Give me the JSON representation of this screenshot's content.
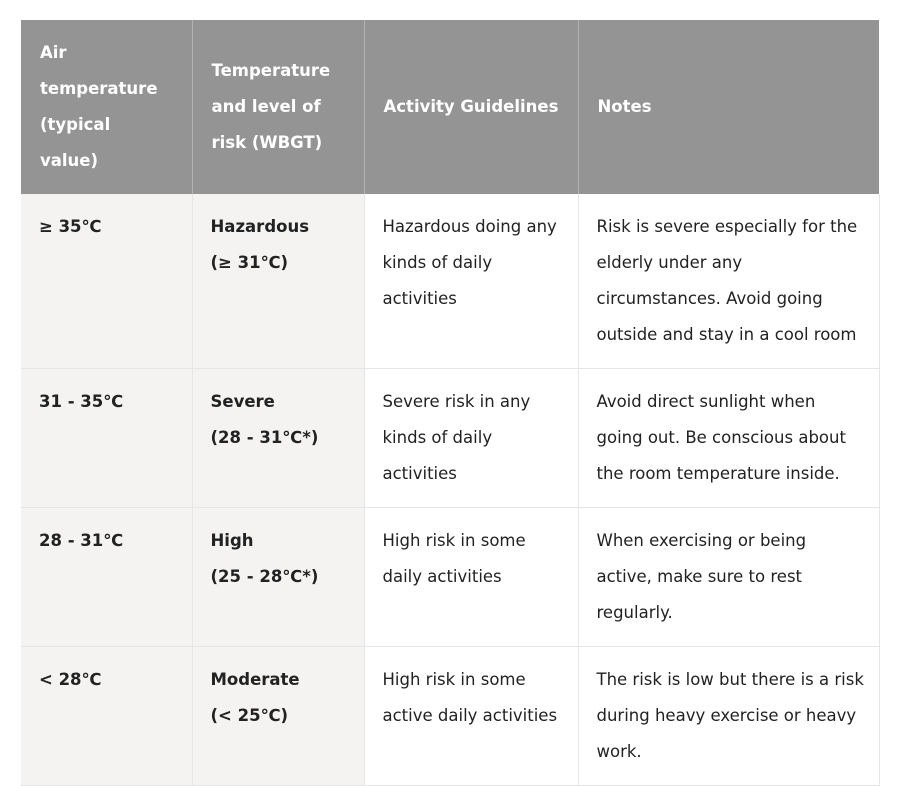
{
  "header": {
    "air_temperature": "Air temperature (typical value)",
    "temperature_risk": "Temperature and level of risk (WBGT)",
    "activity_guidelines": "Activity Guidelines",
    "notes": "Notes"
  },
  "rows": [
    {
      "air": "≥ 35℃",
      "level": "Hazardous",
      "wbgt": "(≥ 31℃)",
      "activity": "Hazardous doing any kinds of daily activities",
      "notes": "Risk is severe especially for the elderly under any circumstances. Avoid going outside and stay in a cool room"
    },
    {
      "air": "31 - 35℃",
      "level": "Severe",
      "wbgt": "(28 - 31℃*)",
      "activity": "Severe risk in any kinds of daily activities",
      "notes": "Avoid direct sunlight when going out. Be conscious about the room temperature inside."
    },
    {
      "air": "28 - 31℃",
      "level": "High",
      "wbgt": "(25 - 28℃*)",
      "activity": "High risk in some daily activities",
      "notes": "When exercising or being active, make sure to rest regularly."
    },
    {
      "air": "< 28℃",
      "level": "Moderate",
      "wbgt": "(< 25℃)",
      "activity": "High risk in some active daily activities",
      "notes": "The risk is low but there is a risk during heavy exercise or heavy work."
    }
  ]
}
